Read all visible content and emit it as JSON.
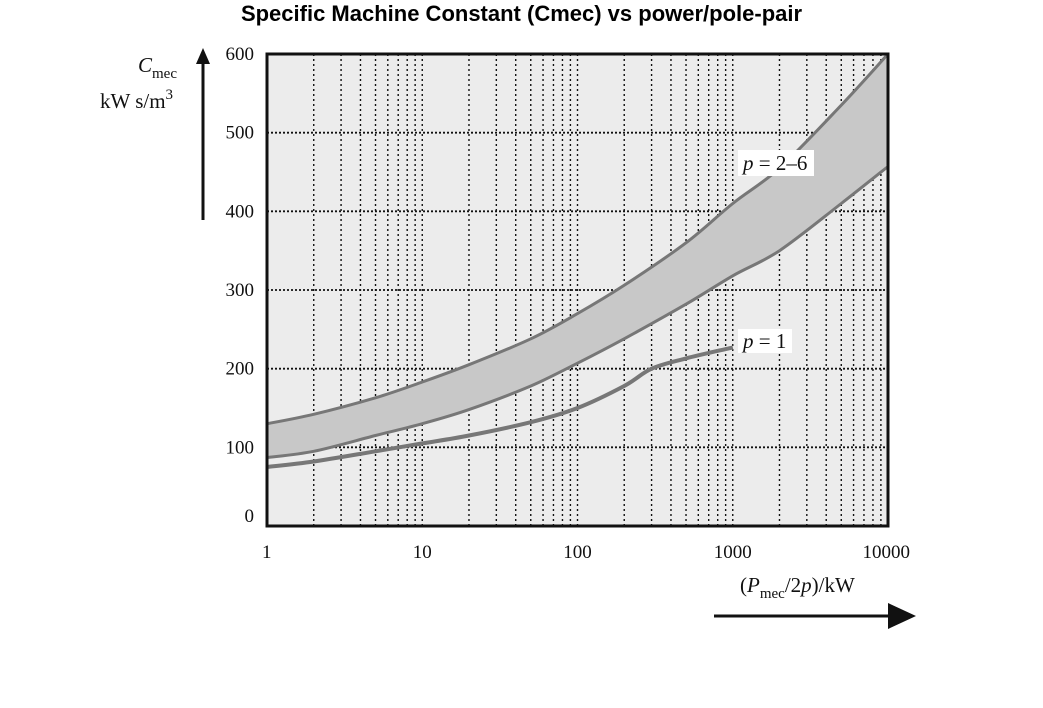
{
  "chart_data": {
    "type": "area",
    "title": "Specific Machine Constant (Cmec) vs power/pole-pair",
    "xscale": "log",
    "xlim": [
      1,
      10000
    ],
    "ylim": [
      0,
      600
    ],
    "grid": true,
    "x_ticks": [
      "1",
      "10",
      "100",
      "1000",
      "10000"
    ],
    "y_ticks": [
      "0",
      "100",
      "200",
      "300",
      "400",
      "500",
      "600"
    ],
    "ylabel": {
      "symbol": "C",
      "subscript": "mec",
      "unit": "kW s/m",
      "unit_sup": "3"
    },
    "xlabel": {
      "open": "(",
      "symbol": "P",
      "subscript": "mec",
      "rest": "/2",
      "p": "p",
      "close": ")/kW"
    },
    "colors": {
      "band": "#c8c8c8",
      "curve": "#777777",
      "plot_bg": "#ececec",
      "frame": "#111111"
    },
    "series": [
      {
        "label": {
          "p": "p",
          "text": " = 2–6"
        },
        "kind": "band",
        "x": [
          1,
          2,
          5,
          10,
          20,
          50,
          100,
          200,
          500,
          1000,
          2000,
          5000,
          10000
        ],
        "upper": [
          130,
          142,
          163,
          183,
          205,
          238,
          270,
          306,
          360,
          410,
          455,
          535,
          600
        ],
        "lower": [
          87,
          95,
          115,
          130,
          148,
          178,
          207,
          238,
          282,
          318,
          350,
          410,
          457
        ]
      },
      {
        "label": {
          "p": "p",
          "text": " = 1"
        },
        "kind": "line",
        "x": [
          1,
          2,
          5,
          10,
          20,
          50,
          100,
          200,
          300,
          500,
          1000
        ],
        "y": [
          75,
          82,
          95,
          105,
          115,
          132,
          150,
          178,
          200,
          213,
          227
        ]
      }
    ]
  }
}
